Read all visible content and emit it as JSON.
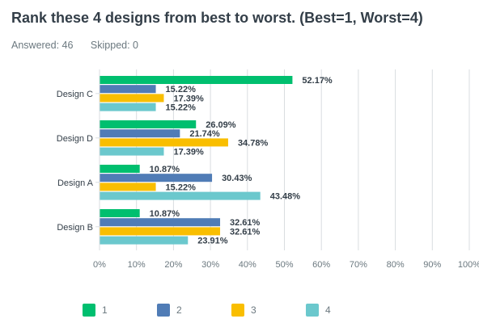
{
  "question": {
    "title": "Rank these 4 designs from best to worst. (Best=1, Worst=4)",
    "answered": "Answered: 46",
    "skipped": "Skipped: 0"
  },
  "colors": {
    "rank_1": "#00bf6f",
    "rank_2": "#507cb6",
    "rank_3": "#f9be00",
    "rank_4": "#6bc8cd",
    "grid": "#d9dde0",
    "label": "#333e48",
    "axis_text": "#6b787f"
  },
  "chart_data": {
    "type": "bar",
    "orientation": "horizontal",
    "categories": [
      "Design C",
      "Design D",
      "Design A",
      "Design B"
    ],
    "series": [
      {
        "name": "1",
        "values": [
          52.17,
          26.09,
          10.87,
          10.87
        ],
        "labels": [
          "52.17%",
          "26.09%",
          "10.87%",
          "10.87%"
        ]
      },
      {
        "name": "2",
        "values": [
          15.22,
          21.74,
          30.43,
          32.61
        ],
        "labels": [
          "15.22%",
          "21.74%",
          "30.43%",
          "32.61%"
        ]
      },
      {
        "name": "3",
        "values": [
          17.39,
          34.78,
          15.22,
          32.61
        ],
        "labels": [
          "17.39%",
          "34.78%",
          "15.22%",
          "32.61%"
        ]
      },
      {
        "name": "4",
        "values": [
          15.22,
          17.39,
          43.48,
          23.91
        ],
        "labels": [
          "15.22%",
          "17.39%",
          "43.48%",
          "23.91%"
        ]
      }
    ],
    "xlim": [
      0,
      100
    ],
    "xticks": [
      "0%",
      "10%",
      "20%",
      "30%",
      "40%",
      "50%",
      "60%",
      "70%",
      "80%",
      "90%",
      "100%"
    ],
    "grid": true,
    "legend_position": "bottom-left",
    "title": "",
    "xlabel": "",
    "ylabel": ""
  }
}
